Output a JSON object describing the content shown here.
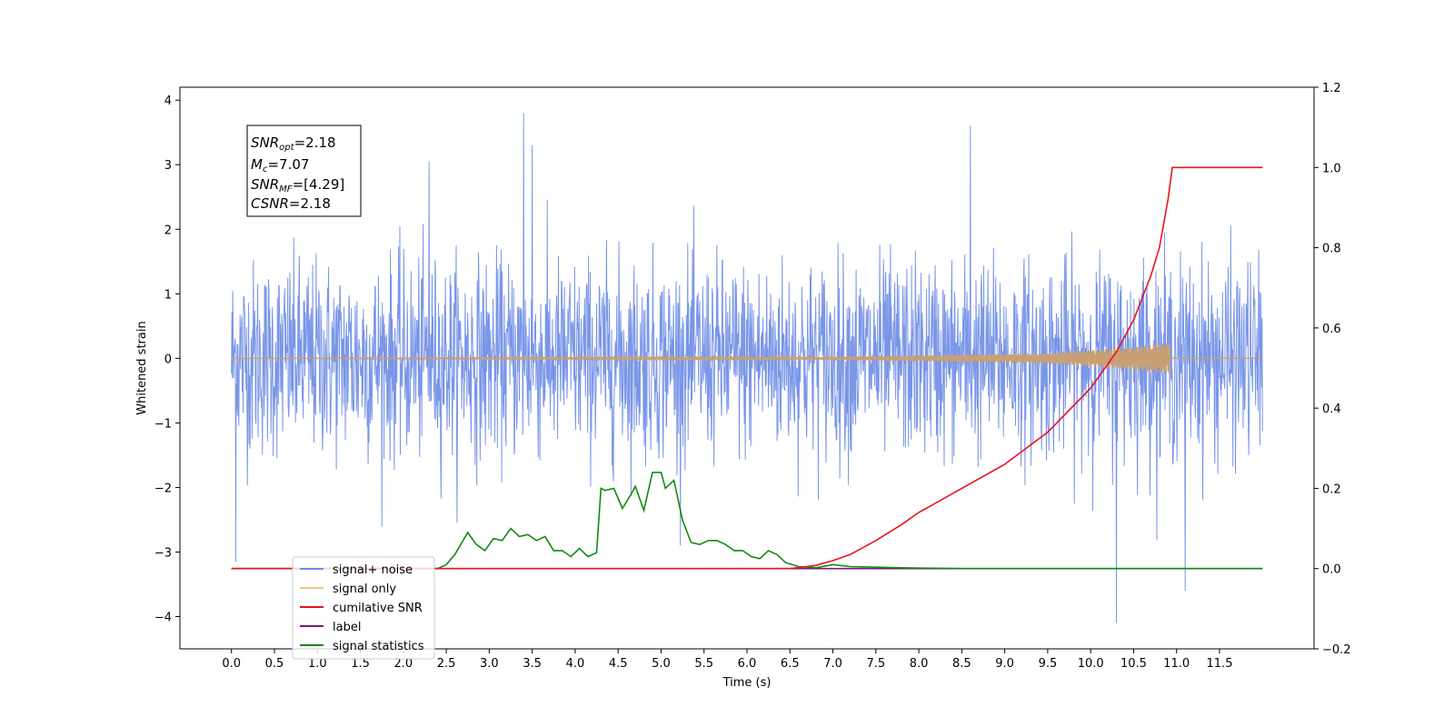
{
  "chart_data": {
    "type": "line",
    "xlabel": "Time (s)",
    "ylabel": "Whitened strain",
    "x_ticks": [
      "0.0",
      "0.5",
      "1.0",
      "1.5",
      "2.0",
      "2.5",
      "3.0",
      "3.5",
      "4.0",
      "4.5",
      "5.0",
      "5.5",
      "6.0",
      "6.5",
      "7.0",
      "7.5",
      "8.0",
      "8.5",
      "9.0",
      "9.5",
      "10.0",
      "10.5",
      "11.0",
      "11.5"
    ],
    "xlim": [
      -0.6,
      12.6
    ],
    "ylim_left": [
      -4.5,
      4.2
    ],
    "y_ticks_left": [
      "−4",
      "−3",
      "−2",
      "−1",
      "0",
      "1",
      "2",
      "3",
      "4"
    ],
    "ylim_right": [
      -0.2,
      1.2
    ],
    "y_ticks_right": [
      "−0.2",
      "0.0",
      "0.2",
      "0.4",
      "0.6",
      "0.8",
      "1.0",
      "1.2"
    ],
    "annotation": {
      "line1_prefix": "SNR",
      "line1_sub": "opt",
      "line1_value": "=2.18",
      "line2_prefix": "M",
      "line2_sub": "c",
      "line2_value": "=7.07",
      "line3_prefix": "SNR",
      "line3_sub": "MF",
      "line3_value": "=[4.29]",
      "line4_prefix": "CSNR",
      "line4_value": "=2.18"
    },
    "legend": {
      "placement": "lower-left",
      "entries": [
        {
          "label": "signal+ noise",
          "color": "#6f8de6"
        },
        {
          "label": "signal only",
          "color": "#f5c27a"
        },
        {
          "label": "cumilative SNR",
          "color": "#e8141c"
        },
        {
          "label": "label",
          "color": "#7a1a7a"
        },
        {
          "label": "signal statistics",
          "color": "#118a11"
        }
      ]
    },
    "series": [
      {
        "name": "signal+ noise",
        "axis": "left",
        "x_range": [
          0,
          12.0
        ],
        "amplitude_std": 0.75,
        "extremes": [
          [
            3.4,
            3.8
          ],
          [
            8.6,
            3.6
          ],
          [
            10.3,
            -4.1
          ],
          [
            11.1,
            -3.6
          ],
          [
            0.05,
            -3.15
          ],
          [
            3.5,
            3.3
          ],
          [
            2.3,
            3.05
          ]
        ]
      },
      {
        "name": "signal only",
        "axis": "left",
        "x_range": [
          0,
          10.95
        ],
        "envelope": [
          [
            0,
            0.0
          ],
          [
            7.0,
            0.02
          ],
          [
            9.5,
            0.08
          ],
          [
            10.5,
            0.18
          ],
          [
            10.93,
            0.25
          ]
        ]
      },
      {
        "name": "cumilative SNR",
        "axis": "right",
        "x": [
          0,
          6.5,
          6.8,
          7.0,
          7.2,
          7.5,
          7.8,
          8.0,
          8.5,
          9.0,
          9.5,
          10.0,
          10.3,
          10.5,
          10.7,
          10.8,
          10.9,
          10.95,
          12.0
        ],
        "y": [
          0,
          0.0,
          0.008,
          0.02,
          0.035,
          0.07,
          0.11,
          0.14,
          0.2,
          0.26,
          0.34,
          0.45,
          0.54,
          0.62,
          0.73,
          0.8,
          0.92,
          1.0,
          1.0
        ]
      },
      {
        "name": "label",
        "axis": "right",
        "x": [
          0,
          12.0
        ],
        "y": [
          0,
          0
        ]
      },
      {
        "name": "signal statistics",
        "axis": "right",
        "x": [
          0,
          2.4,
          2.5,
          2.6,
          2.75,
          2.85,
          2.95,
          3.05,
          3.15,
          3.25,
          3.35,
          3.45,
          3.55,
          3.65,
          3.75,
          3.85,
          3.95,
          4.05,
          4.15,
          4.25,
          4.3,
          4.35,
          4.45,
          4.55,
          4.65,
          4.7,
          4.8,
          4.9,
          5.0,
          5.05,
          5.15,
          5.25,
          5.35,
          5.45,
          5.55,
          5.65,
          5.75,
          5.85,
          5.95,
          6.05,
          6.15,
          6.25,
          6.35,
          6.45,
          6.6,
          6.8,
          7.0,
          7.2,
          7.4,
          7.8,
          8.2,
          8.5,
          12.0
        ],
        "y": [
          0,
          0,
          0.01,
          0.035,
          0.09,
          0.06,
          0.045,
          0.075,
          0.07,
          0.1,
          0.08,
          0.085,
          0.07,
          0.08,
          0.045,
          0.045,
          0.03,
          0.05,
          0.03,
          0.04,
          0.2,
          0.195,
          0.2,
          0.15,
          0.185,
          0.205,
          0.145,
          0.24,
          0.24,
          0.2,
          0.22,
          0.12,
          0.065,
          0.06,
          0.07,
          0.07,
          0.06,
          0.045,
          0.045,
          0.03,
          0.025,
          0.045,
          0.035,
          0.015,
          0.005,
          0.002,
          0.01,
          0.005,
          0.004,
          0.002,
          0.001,
          0.0,
          0.0
        ]
      }
    ]
  }
}
